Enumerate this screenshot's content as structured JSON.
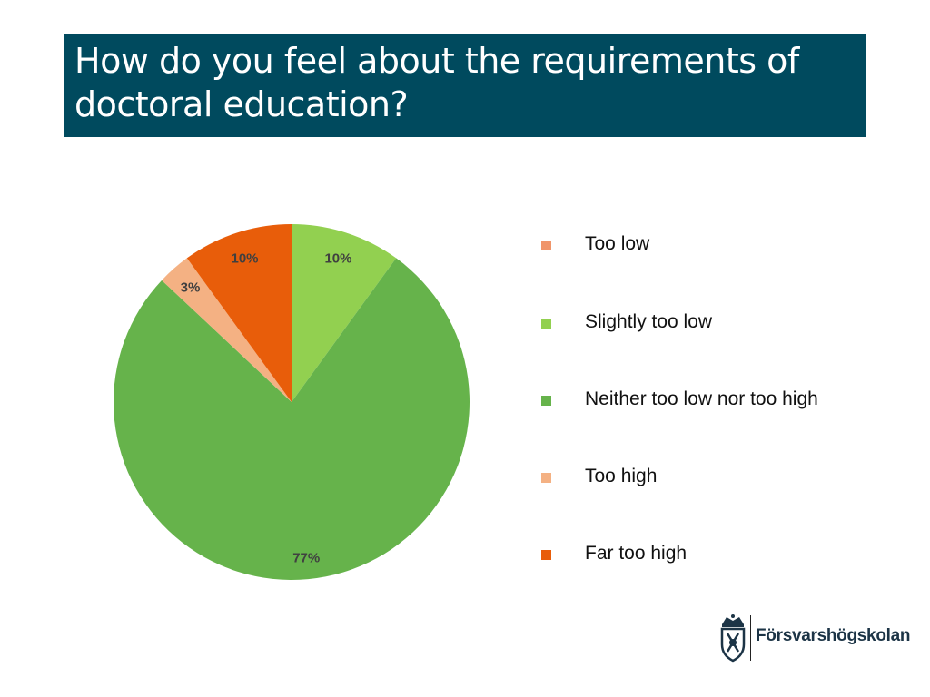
{
  "slide": {
    "title": "How do you feel about the requirements of doctoral education?"
  },
  "chart_data": {
    "type": "pie",
    "categories": [
      "Too low",
      "Slightly too low",
      "Neither too low nor too high",
      "Too high",
      "Far too high"
    ],
    "values": [
      0,
      10,
      77,
      3,
      10
    ],
    "data_labels": [
      "",
      "10%",
      "77%",
      "3%",
      "10%"
    ],
    "colors": [
      "#f0956a",
      "#92d050",
      "#66b34b",
      "#f4b183",
      "#e85d0a"
    ],
    "title": "",
    "legend_position": "right"
  },
  "legend": {
    "items": [
      {
        "label": "Too low",
        "color": "#f0956a"
      },
      {
        "label": "Slightly too low",
        "color": "#92d050"
      },
      {
        "label": "Neither too low nor too high",
        "color": "#66b34b"
      },
      {
        "label": "Too high",
        "color": "#f4b183"
      },
      {
        "label": "Far too high",
        "color": "#e85d0a"
      }
    ]
  },
  "logo": {
    "text": "Försvarshögskolan",
    "icon": "crest-icon",
    "color": "#1c3446"
  }
}
